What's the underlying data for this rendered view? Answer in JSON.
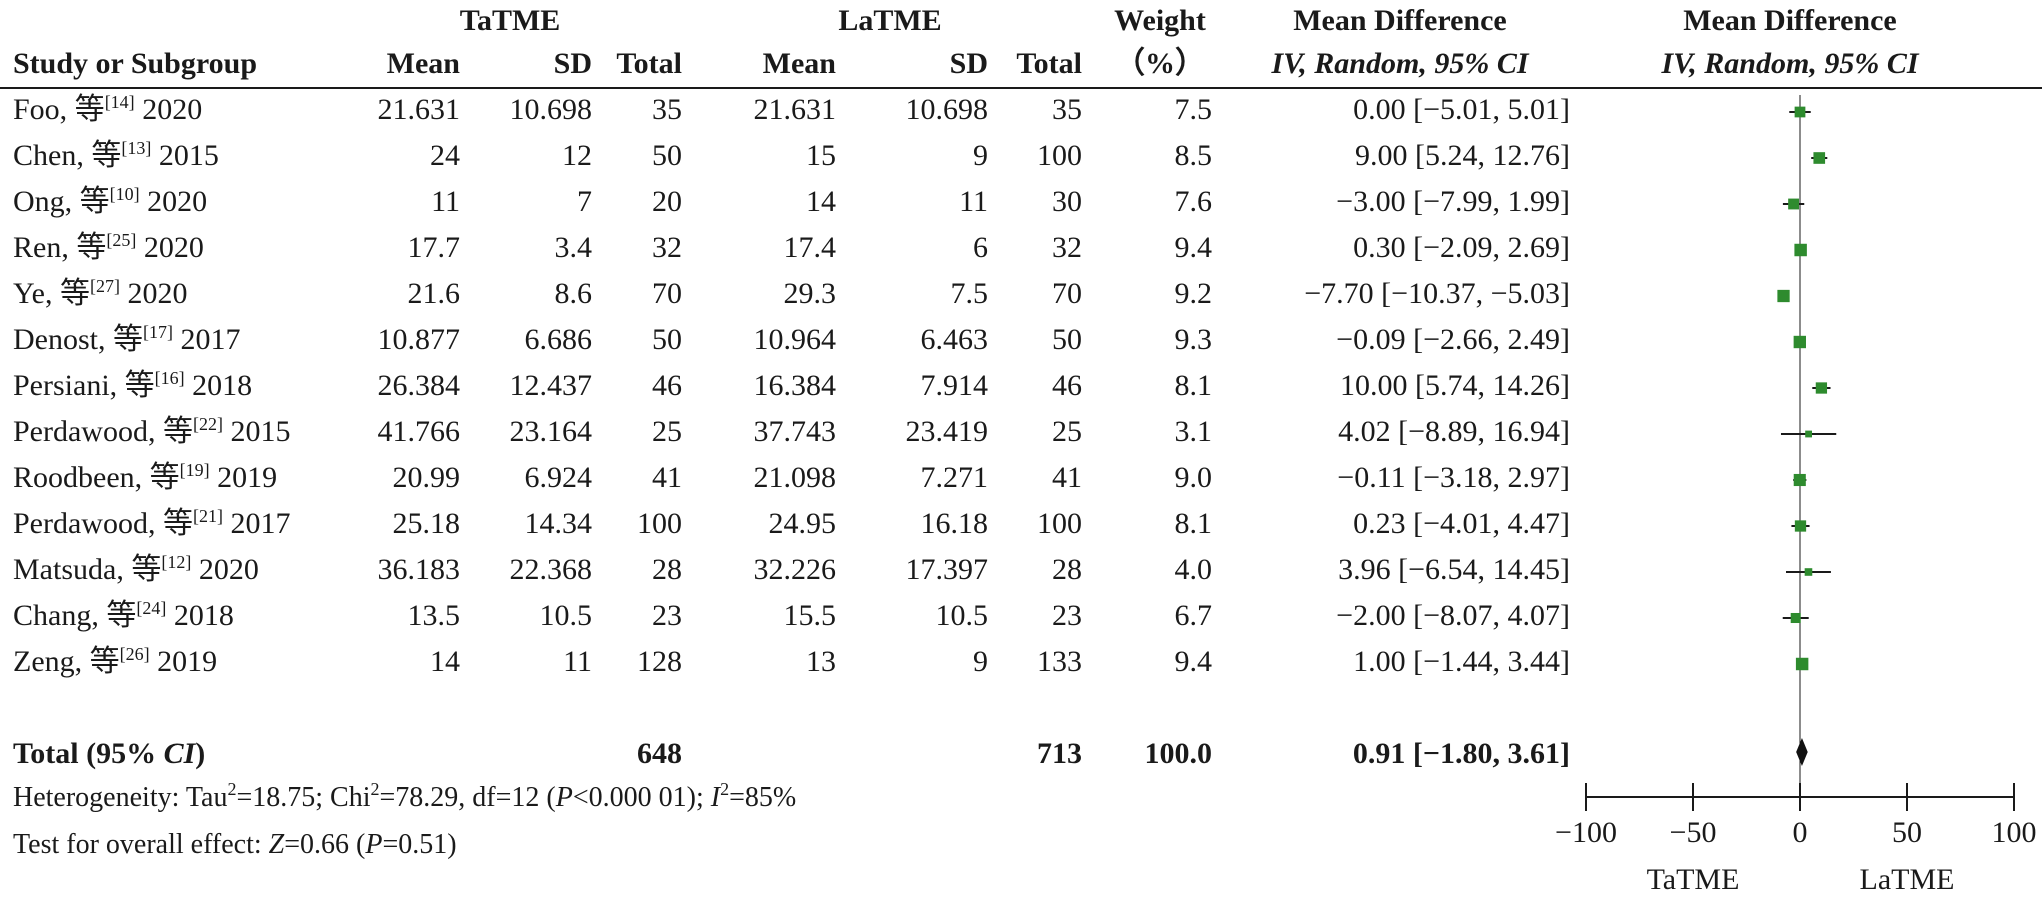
{
  "chart_data": {
    "type": "forest",
    "headers": {
      "group1": "TaTME",
      "group2": "LaTME",
      "study": "Study or Subgroup",
      "mean": "Mean",
      "sd": "SD",
      "total": "Total",
      "weight_top": "Weight",
      "weight_bottom": "（%）",
      "md_title": "Mean Difference",
      "md_method": "IV, Random, 95% CI",
      "plot_title": "Mean Difference",
      "plot_method": "IV, Random, 95% CI"
    },
    "studies": [
      {
        "author": "Foo, 等",
        "ref": "[14]",
        "year": "2020",
        "m1": "21.631",
        "sd1": "10.698",
        "n1": "35",
        "m2": "21.631",
        "sd2": "10.698",
        "n2": "35",
        "weight": "7.5",
        "ci_text": "0.00 [−5.01, 5.01]",
        "md": 0.0,
        "lo": -5.01,
        "hi": 5.01
      },
      {
        "author": "Chen, 等",
        "ref": "[13]",
        "year": "2015",
        "m1": "24",
        "sd1": "12",
        "n1": "50",
        "m2": "15",
        "sd2": "9",
        "n2": "100",
        "weight": "8.5",
        "ci_text": "9.00 [5.24, 12.76]",
        "md": 9.0,
        "lo": 5.24,
        "hi": 12.76
      },
      {
        "author": "Ong, 等",
        "ref": "[10]",
        "year": "2020",
        "m1": "11",
        "sd1": "7",
        "n1": "20",
        "m2": "14",
        "sd2": "11",
        "n2": "30",
        "weight": "7.6",
        "ci_text": "−3.00 [−7.99, 1.99]",
        "md": -3.0,
        "lo": -7.99,
        "hi": 1.99
      },
      {
        "author": "Ren, 等",
        "ref": "[25]",
        "year": "2020",
        "m1": "17.7",
        "sd1": "3.4",
        "n1": "32",
        "m2": "17.4",
        "sd2": "6",
        "n2": "32",
        "weight": "9.4",
        "ci_text": "0.30 [−2.09, 2.69]",
        "md": 0.3,
        "lo": -2.09,
        "hi": 2.69
      },
      {
        "author": "Ye, 等",
        "ref": "[27]",
        "year": "2020",
        "m1": "21.6",
        "sd1": "8.6",
        "n1": "70",
        "m2": "29.3",
        "sd2": "7.5",
        "n2": "70",
        "weight": "9.2",
        "ci_text": "−7.70 [−10.37, −5.03]",
        "md": -7.7,
        "lo": -10.37,
        "hi": -5.03
      },
      {
        "author": "Denost, 等",
        "ref": "[17]",
        "year": "2017",
        "m1": "10.877",
        "sd1": "6.686",
        "n1": "50",
        "m2": "10.964",
        "sd2": "6.463",
        "n2": "50",
        "weight": "9.3",
        "ci_text": "−0.09 [−2.66, 2.49]",
        "md": -0.09,
        "lo": -2.66,
        "hi": 2.49
      },
      {
        "author": "Persiani, 等",
        "ref": "[16]",
        "year": "2018",
        "m1": "26.384",
        "sd1": "12.437",
        "n1": "46",
        "m2": "16.384",
        "sd2": "7.914",
        "n2": "46",
        "weight": "8.1",
        "ci_text": "10.00 [5.74, 14.26]",
        "md": 10.0,
        "lo": 5.74,
        "hi": 14.26
      },
      {
        "author": "Perdawood, 等",
        "ref": "[22]",
        "year": "2015",
        "m1": "41.766",
        "sd1": "23.164",
        "n1": "25",
        "m2": "37.743",
        "sd2": "23.419",
        "n2": "25",
        "weight": "3.1",
        "ci_text": "4.02 [−8.89, 16.94]",
        "md": 4.02,
        "lo": -8.89,
        "hi": 16.94
      },
      {
        "author": "Roodbeen, 等",
        "ref": "[19]",
        "year": "2019",
        "m1": "20.99",
        "sd1": "6.924",
        "n1": "41",
        "m2": "21.098",
        "sd2": "7.271",
        "n2": "41",
        "weight": "9.0",
        "ci_text": "−0.11 [−3.18, 2.97]",
        "md": -0.11,
        "lo": -3.18,
        "hi": 2.97
      },
      {
        "author": "Perdawood, 等",
        "ref": "[21]",
        "year": "2017",
        "m1": "25.18",
        "sd1": "14.34",
        "n1": "100",
        "m2": "24.95",
        "sd2": "16.18",
        "n2": "100",
        "weight": "8.1",
        "ci_text": "0.23 [−4.01, 4.47]",
        "md": 0.23,
        "lo": -4.01,
        "hi": 4.47
      },
      {
        "author": "Matsuda, 等",
        "ref": "[12]",
        "year": "2020",
        "m1": "36.183",
        "sd1": "22.368",
        "n1": "28",
        "m2": "32.226",
        "sd2": "17.397",
        "n2": "28",
        "weight": "4.0",
        "ci_text": "3.96 [−6.54, 14.45]",
        "md": 3.96,
        "lo": -6.54,
        "hi": 14.45
      },
      {
        "author": "Chang, 等",
        "ref": "[24]",
        "year": "2018",
        "m1": "13.5",
        "sd1": "10.5",
        "n1": "23",
        "m2": "15.5",
        "sd2": "10.5",
        "n2": "23",
        "weight": "6.7",
        "ci_text": "−2.00 [−8.07, 4.07]",
        "md": -2.0,
        "lo": -8.07,
        "hi": 4.07
      },
      {
        "author": "Zeng, 等",
        "ref": "[26]",
        "year": "2019",
        "m1": "14",
        "sd1": "11",
        "n1": "128",
        "m2": "13",
        "sd2": "9",
        "n2": "133",
        "weight": "9.4",
        "ci_text": "1.00 [−1.44, 3.44]",
        "md": 1.0,
        "lo": -1.44,
        "hi": 3.44
      }
    ],
    "total": {
      "label_pre": "Total (95% ",
      "label_ci": "CI",
      "label_post": ")",
      "n1": "648",
      "n2": "713",
      "weight": "100.0",
      "ci_text": "0.91 [−1.80, 3.61]",
      "md": 0.91,
      "lo": -1.8,
      "hi": 3.61
    },
    "heterogeneity": {
      "p1": "Heterogeneity: Tau",
      "p2": "=18.75; Chi",
      "p3": "=78.29, df=12 (",
      "p_italic": "P",
      "p4": "<0.000 01); ",
      "i_italic": "I",
      "p5": "=85%",
      "sup": "2"
    },
    "overall_effect": {
      "p1": "Test for overall effect: ",
      "z_italic": "Z",
      "p2": "=0.66 (",
      "p_italic": "P",
      "p3": "=0.51)"
    },
    "x_axis": {
      "range": [
        -100,
        100
      ],
      "ticks": [
        -100,
        -50,
        0,
        50,
        100
      ],
      "tick_labels": [
        "−100",
        "−50",
        "0",
        "50",
        "100"
      ],
      "favours_left": "TaTME",
      "favours_right": "LaTME"
    },
    "colors": {
      "marker": "#2e8b2e",
      "line": "#1a1a1a",
      "diamond": "#111111"
    }
  }
}
